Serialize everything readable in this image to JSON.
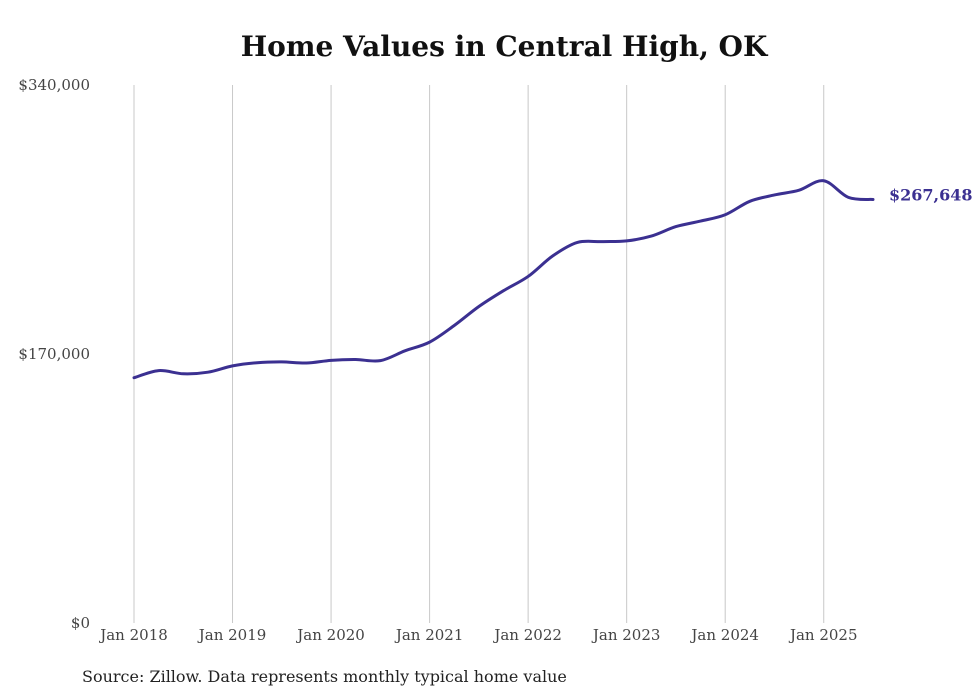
{
  "title": "Home Values in Central High, OK",
  "source": "Source: Zillow. Data represents monthly typical home value",
  "colors": {
    "line": "#3b3091",
    "grid": "#c8c8c8",
    "text": "#444444"
  },
  "chart_data": {
    "type": "line",
    "title": "Home Values in Central High, OK",
    "xlabel": "",
    "ylabel": "",
    "ylim": [
      0,
      340000
    ],
    "xlim": [
      "2018-01",
      "2025-07"
    ],
    "y_ticks": [
      {
        "value": 0,
        "label": "$0"
      },
      {
        "value": 170000,
        "label": "$170,000"
      },
      {
        "value": 340000,
        "label": "$340,000"
      }
    ],
    "x_ticks": [
      {
        "value": "2018-01",
        "label": "Jan 2018"
      },
      {
        "value": "2019-01",
        "label": "Jan 2019"
      },
      {
        "value": "2020-01",
        "label": "Jan 2020"
      },
      {
        "value": "2021-01",
        "label": "Jan 2021"
      },
      {
        "value": "2022-01",
        "label": "Jan 2022"
      },
      {
        "value": "2023-01",
        "label": "Jan 2023"
      },
      {
        "value": "2024-01",
        "label": "Jan 2024"
      },
      {
        "value": "2025-01",
        "label": "Jan 2025"
      }
    ],
    "grid": "vertical",
    "end_label": "$267,648",
    "series": [
      {
        "x": [
          "2018-01",
          "2018-04",
          "2018-07",
          "2018-10",
          "2019-01",
          "2019-04",
          "2019-07",
          "2019-10",
          "2020-01",
          "2020-04",
          "2020-07",
          "2020-10",
          "2021-01",
          "2021-04",
          "2021-07",
          "2021-10",
          "2022-01",
          "2022-04",
          "2022-07",
          "2022-10",
          "2023-01",
          "2023-04",
          "2023-07",
          "2023-10",
          "2024-01",
          "2024-04",
          "2024-07",
          "2024-10",
          "2025-01",
          "2025-04",
          "2025-07"
        ],
        "values": [
          155000,
          159500,
          157500,
          158500,
          162500,
          164500,
          165000,
          164300,
          166000,
          166500,
          165800,
          172000,
          177500,
          188000,
          200000,
          210000,
          219000,
          232000,
          240500,
          241000,
          241500,
          244500,
          250500,
          254000,
          258000,
          266500,
          270500,
          273500,
          279500,
          269000,
          267648
        ]
      }
    ]
  }
}
